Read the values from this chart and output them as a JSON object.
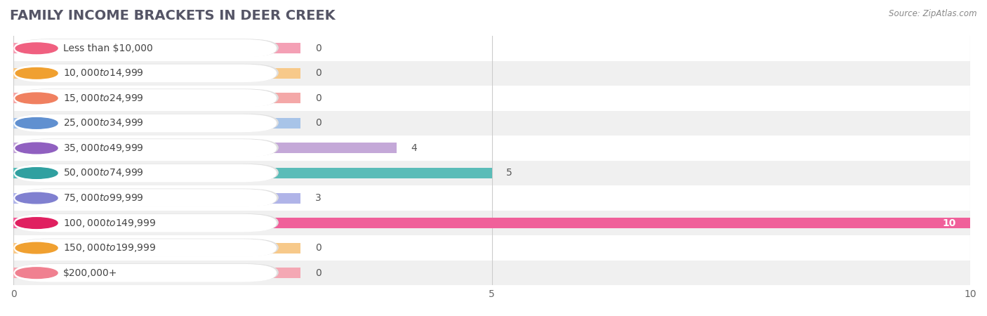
{
  "title": "FAMILY INCOME BRACKETS IN DEER CREEK",
  "source": "Source: ZipAtlas.com",
  "categories": [
    "Less than $10,000",
    "$10,000 to $14,999",
    "$15,000 to $24,999",
    "$25,000 to $34,999",
    "$35,000 to $49,999",
    "$50,000 to $74,999",
    "$75,000 to $99,999",
    "$100,000 to $149,999",
    "$150,000 to $199,999",
    "$200,000+"
  ],
  "values": [
    0,
    0,
    0,
    0,
    4,
    5,
    3,
    10,
    0,
    0
  ],
  "bar_colors": [
    "#f4a0b5",
    "#f7c98a",
    "#f4a8a8",
    "#a8c4e8",
    "#c4a8d8",
    "#5bbcb8",
    "#b0b4e8",
    "#f0609a",
    "#f7c98a",
    "#f4a8b4"
  ],
  "dot_colors": [
    "#f06080",
    "#f0a030",
    "#f08060",
    "#6090d0",
    "#9060c0",
    "#30a0a0",
    "#8080d0",
    "#e02060",
    "#f0a030",
    "#f08090"
  ],
  "background_color": "#ffffff",
  "row_bg_light": "#ffffff",
  "row_bg_dark": "#f0f0f0",
  "xlim": [
    0,
    10
  ],
  "xticks": [
    0,
    5,
    10
  ],
  "title_fontsize": 14,
  "label_fontsize": 10,
  "value_fontsize": 10
}
